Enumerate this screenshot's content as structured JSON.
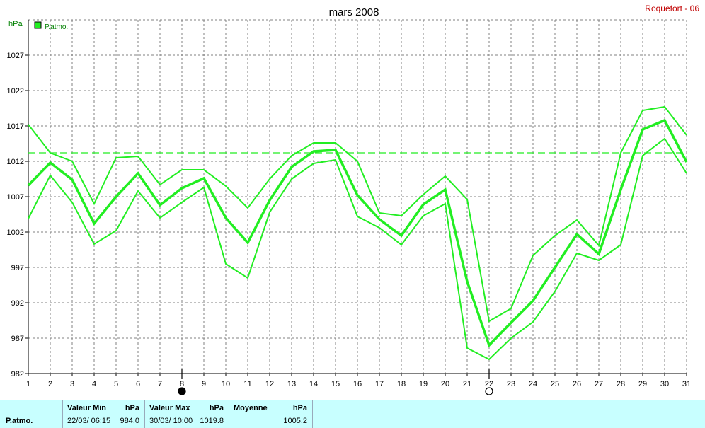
{
  "header": {
    "title": "mars 2008",
    "station": "Roquefort - 06",
    "unit": "hPa"
  },
  "chart_data": {
    "type": "line",
    "title": "mars 2008",
    "ylabel": "hPa",
    "ylim": [
      982,
      1032
    ],
    "yticks": [
      982,
      987,
      992,
      997,
      1002,
      1007,
      1012,
      1017,
      1022,
      1027
    ],
    "x": [
      1,
      2,
      3,
      4,
      5,
      6,
      7,
      8,
      9,
      10,
      11,
      12,
      13,
      14,
      15,
      16,
      17,
      18,
      19,
      20,
      21,
      22,
      23,
      24,
      25,
      26,
      27,
      28,
      29,
      30,
      31
    ],
    "legend": "P.atmo.",
    "reference_line": 1013.2,
    "series": [
      {
        "role": "max",
        "values": [
          1017.2,
          1013.2,
          1012.0,
          1006.0,
          1012.5,
          1012.7,
          1008.7,
          1010.8,
          1010.8,
          1008.5,
          1005.4,
          1009.5,
          1012.8,
          1014.6,
          1014.6,
          1012.0,
          1004.7,
          1004.3,
          1007.3,
          1009.9,
          1006.6,
          989.4,
          991.2,
          998.7,
          1001.5,
          1003.7,
          1000.1,
          1013.2,
          1019.2,
          1019.7,
          1015.7
        ]
      },
      {
        "role": "mean",
        "values": [
          1008.6,
          1011.8,
          1009.4,
          1003.2,
          1007.0,
          1010.3,
          1005.8,
          1008.2,
          1009.6,
          1004.0,
          1000.5,
          1006.5,
          1011.2,
          1013.4,
          1013.6,
          1007.2,
          1003.8,
          1001.5,
          1005.9,
          1008.0,
          995.0,
          986.0,
          989.2,
          992.3,
          997.0,
          1001.7,
          998.9,
          1008.0,
          1016.5,
          1017.8,
          1011.9
        ]
      },
      {
        "role": "min",
        "values": [
          1003.9,
          1010.0,
          1006.2,
          1000.3,
          1002.2,
          1007.8,
          1004.0,
          1006.2,
          1008.3,
          997.5,
          995.5,
          1004.8,
          1009.5,
          1011.7,
          1012.2,
          1004.2,
          1002.6,
          1000.2,
          1004.3,
          1006.0,
          985.6,
          984.0,
          987.0,
          989.3,
          993.6,
          999.0,
          998.0,
          1000.2,
          1012.8,
          1015.2,
          1010.3
        ]
      }
    ],
    "markers": [
      {
        "day": 8,
        "type": "filled-circle"
      },
      {
        "day": 22,
        "type": "open-circle"
      }
    ],
    "grid": true
  },
  "colors": {
    "line": "#22ee22",
    "axis": "#000000",
    "grid": "#808080",
    "station_text": "#c00000",
    "axis_label": "#008000",
    "statbar_bg": "#c8ffff"
  },
  "stats": {
    "series_label": "P.atmo.",
    "min_head": "Valeur Min",
    "min_unit": "hPa",
    "min_when": "22/03/  06:15",
    "min_value": "984.0",
    "max_head": "Valeur Max",
    "max_unit": "hPa",
    "max_when": "30/03/  10:00",
    "max_value": "1019.8",
    "mean_head": "Moyenne",
    "mean_unit": "hPa",
    "mean_value": "1005.2"
  }
}
